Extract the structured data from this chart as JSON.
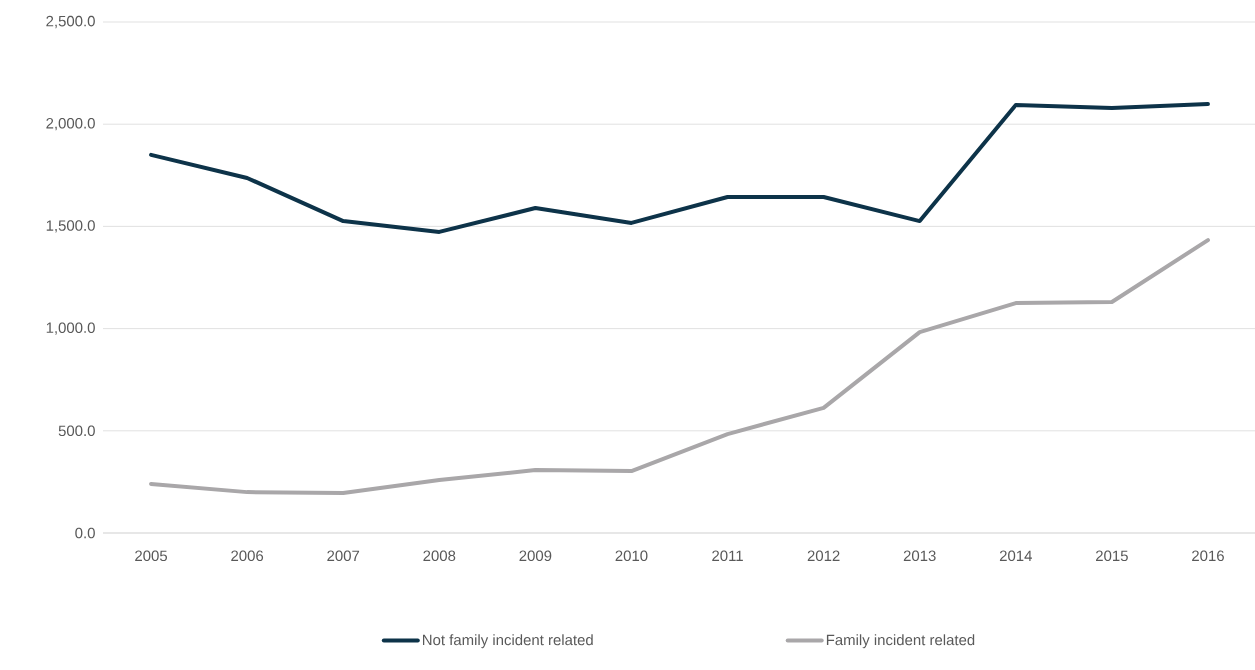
{
  "chart_data": {
    "type": "line",
    "categories": [
      "2005",
      "2006",
      "2007",
      "2008",
      "2009",
      "2010",
      "2011",
      "2012",
      "2013",
      "2014",
      "2015",
      "2016"
    ],
    "series": [
      {
        "name": "Not family incident related",
        "color": "#0d3349",
        "values": [
          1850,
          1737,
          1526,
          1473,
          1590,
          1517,
          1644,
          1644,
          1526,
          2094,
          2079,
          2099
        ]
      },
      {
        "name": "Family incident related",
        "color": "#a9a7a9",
        "values": [
          240,
          200,
          196,
          259,
          308,
          303,
          484,
          612,
          983,
          1125,
          1130,
          1433
        ]
      }
    ],
    "ylim": [
      0,
      2500
    ],
    "yticks": [
      {
        "value": 0,
        "label": "0.0"
      },
      {
        "value": 500,
        "label": "500.0"
      },
      {
        "value": 1000,
        "label": "1,000.0"
      },
      {
        "value": 1500,
        "label": "1,500.0"
      },
      {
        "value": 2000,
        "label": "2,000.0"
      },
      {
        "value": 2500,
        "label": "2,500.0"
      }
    ],
    "grid": "y",
    "legend": "bottom",
    "marker": "none",
    "line_style": "solid"
  }
}
